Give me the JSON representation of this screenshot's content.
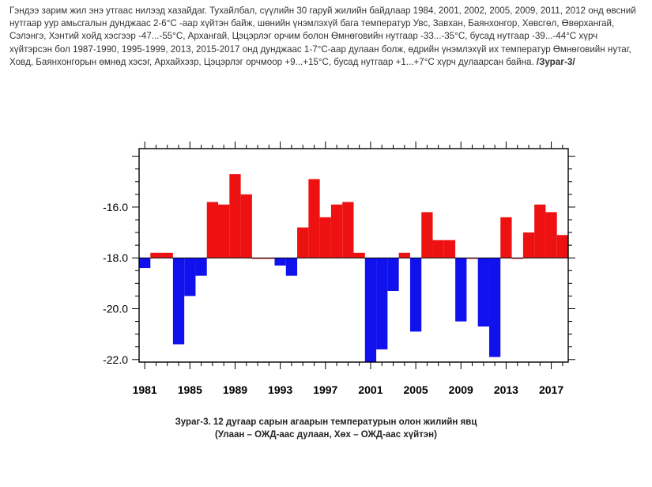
{
  "text": {
    "paragraph": "Гэндээ зарим жил энэ утгаас нилээд хазайдаг. Тухайлбал, сүүлийн 30 гаруй жилийн байдлаар 1984, 2001, 2002, 2005, 2009, 2011, 2012 онд өвсний нутгаар уур амьсгалын дунджаас 2-6°C -аар хүйтэн байж, шөнийн үнэмлэхүй бага температур Увс, Завхан, Баянхонгор, Хөвсгөл, Өвөрхангай, Сэлэнгэ, Хэнтий хойд хэсгээр -47...-55°C, Архангай, Цэцэрлэг орчим болон Өмнөговийн нутгаар -33...-35°C, бусад нутгаар -39...-44°C хүрч хүйтэрсэн бол 1987-1990, 1995-1999, 2013, 2015-2017 онд дунджаас 1-7°C-аар дулаан болж, өдрийн үнэмлэхүй их температур Өмнөговийн нутаг, Ховд, Баянхонгорын өмнөд хэсэг, Архайхэзр, Цэцэрлэг орчмоор +9...+15°C, бусад нутгаар +1...+7°C хүрч дулаарсан байна.",
    "figure_ref": "/Зураг-3/",
    "caption_line1": "Зураг-3. 12 дугаар сарын агаарын температурын олон жилийн явц",
    "caption_line2": "(Улаан – ОЖД-аас дулаан, Хөх – ОЖД-аас хүйтэн)"
  },
  "colors": {
    "warm": "#ee1111",
    "cold": "#1111ee",
    "axis": "#000000",
    "background": "#ffffff"
  },
  "chart_data": {
    "type": "bar",
    "baseline": -18.0,
    "ylim": [
      -22.1,
      -13.7
    ],
    "xlim": [
      1980.5,
      2018.5
    ],
    "yticks": [
      -16.0,
      -18.0,
      -20.0,
      -22.0
    ],
    "ytick_labels": [
      "-16.0",
      "-18.0",
      "-20.0",
      "-22.0"
    ],
    "xticks": [
      1981,
      1985,
      1989,
      1993,
      1997,
      2001,
      2005,
      2009,
      2013,
      2017
    ],
    "xtick_labels": [
      "1981",
      "1985",
      "1989",
      "1993",
      "1997",
      "2001",
      "2005",
      "2009",
      "2013",
      "2017"
    ],
    "years": [
      1981,
      1982,
      1983,
      1984,
      1985,
      1986,
      1987,
      1988,
      1989,
      1990,
      1991,
      1992,
      1993,
      1994,
      1995,
      1996,
      1997,
      1998,
      1999,
      2000,
      2001,
      2002,
      2003,
      2004,
      2005,
      2006,
      2007,
      2008,
      2009,
      2010,
      2011,
      2012,
      2013,
      2014,
      2015,
      2016,
      2017,
      2018
    ],
    "values": [
      -18.4,
      -17.8,
      -17.8,
      -21.4,
      -19.5,
      -18.7,
      -15.8,
      -15.9,
      -14.7,
      -15.5,
      -18.0,
      -18.0,
      -18.3,
      -18.7,
      -16.8,
      -14.9,
      -16.4,
      -15.9,
      -15.8,
      -17.8,
      -22.1,
      -21.6,
      -19.3,
      -17.8,
      -20.9,
      -16.2,
      -17.3,
      -17.3,
      -20.5,
      -18.0,
      -20.7,
      -21.9,
      -16.4,
      -18.0,
      -17.0,
      -15.9,
      -16.2,
      -17.1
    ]
  }
}
